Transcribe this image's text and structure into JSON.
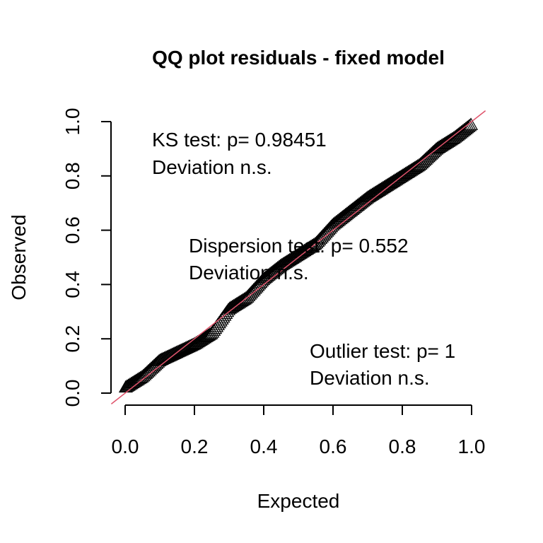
{
  "chart_data": {
    "type": "scatter",
    "title": "QQ plot residuals - fixed model",
    "xlabel": "Expected",
    "ylabel": "Observed",
    "xlim": [
      0,
      1
    ],
    "ylim": [
      0,
      1
    ],
    "xticks": [
      "0.0",
      "0.2",
      "0.4",
      "0.6",
      "0.8",
      "1.0"
    ],
    "yticks": [
      "0.0",
      "0.2",
      "0.4",
      "0.6",
      "0.8",
      "1.0"
    ],
    "marker": "open-triangle",
    "point_color": "#000000",
    "reference_line": {
      "slope": 1,
      "intercept": 0,
      "color": "#DF536B"
    },
    "annotations": [
      {
        "line1": "KS test: p= 0.98451",
        "line2": "Deviation  n.s."
      },
      {
        "line1": "Dispersion test: p= 0.552",
        "line2": "Deviation  n.s."
      },
      {
        "line1": "Outlier test: p= 1",
        "line2": "Deviation  n.s."
      }
    ],
    "curve": [
      [
        0.0,
        0.02
      ],
      [
        0.05,
        0.06
      ],
      [
        0.1,
        0.12
      ],
      [
        0.15,
        0.15
      ],
      [
        0.2,
        0.18
      ],
      [
        0.25,
        0.22
      ],
      [
        0.3,
        0.31
      ],
      [
        0.35,
        0.35
      ],
      [
        0.4,
        0.42
      ],
      [
        0.45,
        0.47
      ],
      [
        0.5,
        0.51
      ],
      [
        0.55,
        0.55
      ],
      [
        0.6,
        0.62
      ],
      [
        0.65,
        0.67
      ],
      [
        0.7,
        0.72
      ],
      [
        0.75,
        0.76
      ],
      [
        0.8,
        0.8
      ],
      [
        0.85,
        0.84
      ],
      [
        0.9,
        0.9
      ],
      [
        0.95,
        0.94
      ],
      [
        1.0,
        0.99
      ]
    ],
    "n_points": 260
  }
}
